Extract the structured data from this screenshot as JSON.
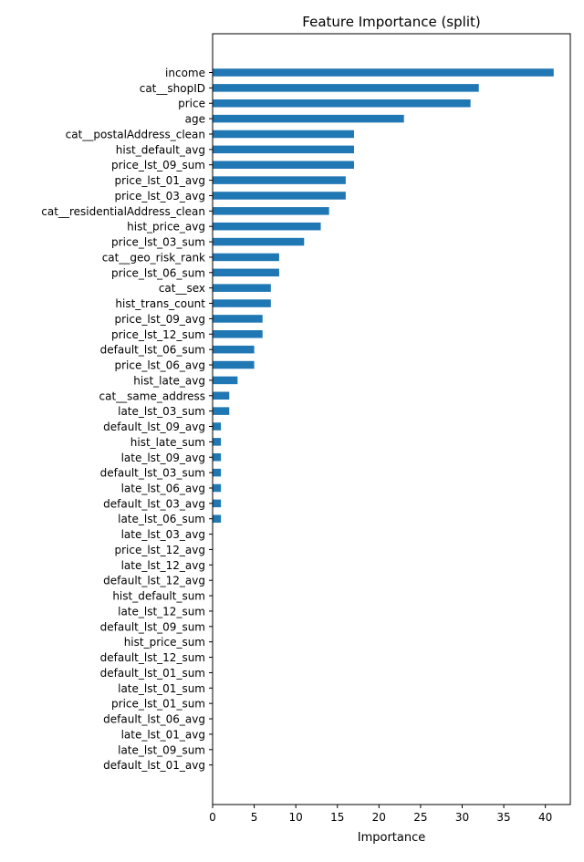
{
  "chart_data": {
    "type": "bar",
    "orientation": "horizontal",
    "title": "Feature Importance (split)",
    "xlabel": "Importance",
    "ylabel": "",
    "xlim": [
      0,
      43
    ],
    "xticks": [
      0,
      5,
      10,
      15,
      20,
      25,
      30,
      35,
      40
    ],
    "grid": false,
    "bar_color": "#1f77b4",
    "categories": [
      "income",
      "cat__shopID",
      "price",
      "age",
      "cat__postalAddress_clean",
      "hist_default_avg",
      "price_lst_09_sum",
      "price_lst_01_avg",
      "price_lst_03_avg",
      "cat__residentialAddress_clean",
      "hist_price_avg",
      "price_lst_03_sum",
      "cat__geo_risk_rank",
      "price_lst_06_sum",
      "cat__sex",
      "hist_trans_count",
      "price_lst_09_avg",
      "price_lst_12_sum",
      "default_lst_06_sum",
      "price_lst_06_avg",
      "hist_late_avg",
      "cat__same_address",
      "late_lst_03_sum",
      "default_lst_09_avg",
      "hist_late_sum",
      "late_lst_09_avg",
      "default_lst_03_sum",
      "late_lst_06_avg",
      "default_lst_03_avg",
      "late_lst_06_sum",
      "late_lst_03_avg",
      "price_lst_12_avg",
      "late_lst_12_avg",
      "default_lst_12_avg",
      "hist_default_sum",
      "late_lst_12_sum",
      "default_lst_09_sum",
      "hist_price_sum",
      "default_lst_12_sum",
      "default_lst_01_sum",
      "late_lst_01_sum",
      "price_lst_01_sum",
      "default_lst_06_avg",
      "late_lst_01_avg",
      "late_lst_09_sum",
      "default_lst_01_avg"
    ],
    "values": [
      41,
      32,
      31,
      23,
      17,
      17,
      17,
      16,
      16,
      14,
      13,
      11,
      8,
      8,
      7,
      7,
      6,
      6,
      5,
      5,
      3,
      2,
      2,
      1,
      1,
      1,
      1,
      1,
      1,
      1,
      0,
      0,
      0,
      0,
      0,
      0,
      0,
      0,
      0,
      0,
      0,
      0,
      0,
      0,
      0,
      0
    ]
  }
}
